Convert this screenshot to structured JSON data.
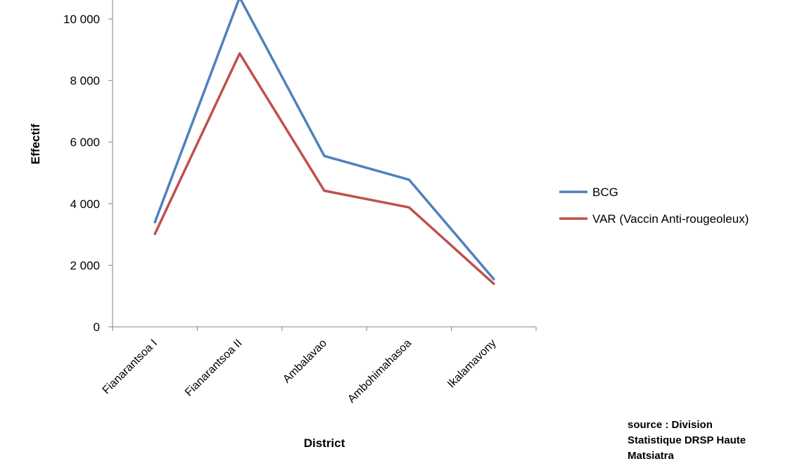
{
  "chart_data": {
    "type": "line",
    "title": "",
    "xlabel": "District",
    "ylabel": "Effectif",
    "ylim": [
      0,
      10000
    ],
    "yticks": [
      0,
      2000,
      4000,
      6000,
      8000,
      10000
    ],
    "ytick_labels": [
      "0",
      "2 000",
      "4 000",
      "6 000",
      "8 000",
      "10 000"
    ],
    "grid": false,
    "legend_position": "right",
    "categories": [
      "Fianarantsoa I",
      "Fianarantsoa II",
      "Ambalavao",
      "Ambohimahasoa",
      "Ikalamavony"
    ],
    "series": [
      {
        "name": "BCG",
        "color": "#4F81BD",
        "values": [
          3400,
          10700,
          5550,
          4780,
          1550
        ]
      },
      {
        "name": "VAR (Vaccin Anti-rougeoleux)",
        "color": "#C0504D",
        "values": [
          3020,
          8880,
          4420,
          3880,
          1400
        ]
      }
    ]
  },
  "source_note": "source : Division\nStatistique  DRSP Haute\nMatsiatra"
}
